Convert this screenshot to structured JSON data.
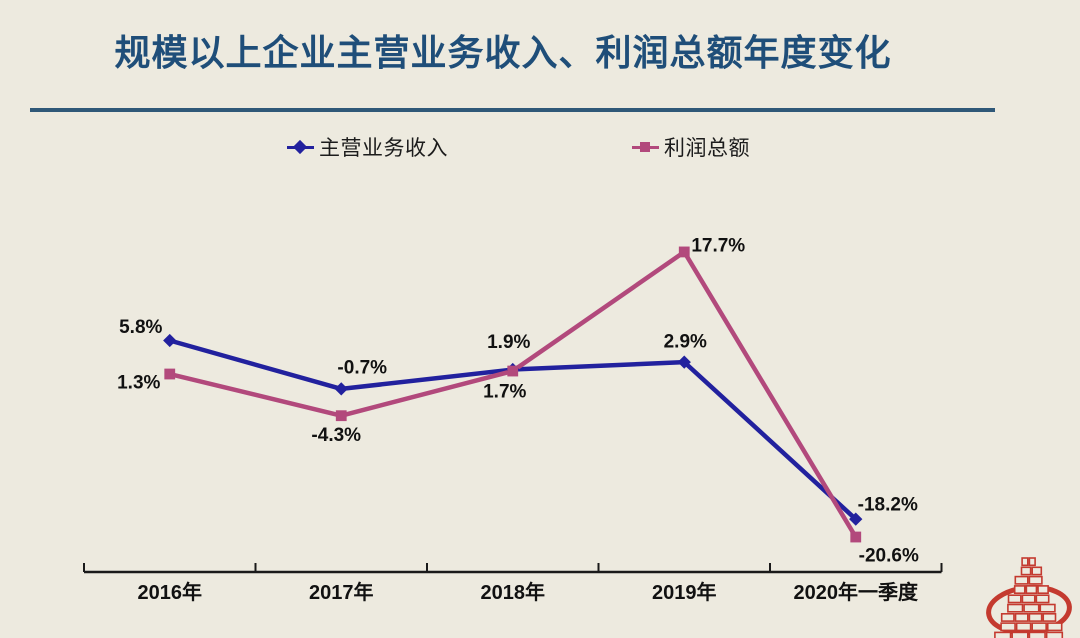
{
  "slide": {
    "background_color": "#EDEADF"
  },
  "header": {
    "title": "规模以上企业主营业务收入、利润总额年度变化",
    "title_color": "#1F4E79",
    "divider_color": "#2F5878"
  },
  "chart_data": {
    "type": "line",
    "title": "规模以上企业主营业务收入、利润总额年度变化",
    "categories": [
      "2016年",
      "2017年",
      "2018年",
      "2019年",
      "2020年一季度"
    ],
    "series": [
      {
        "name": "主营业务收入",
        "color": "#22219E",
        "marker": "diamond",
        "values": [
          5.8,
          -0.7,
          1.9,
          2.9,
          -18.2
        ],
        "labels": [
          "5.8%",
          "-0.7%",
          "1.9%",
          "2.9%",
          "-18.2%"
        ],
        "label_offsets": [
          [
            -29,
            -13
          ],
          [
            21,
            -21
          ],
          [
            -4,
            -27
          ],
          [
            1,
            -20
          ],
          [
            32,
            -14
          ]
        ]
      },
      {
        "name": "利润总额",
        "color": "#B2497C",
        "marker": "square",
        "values": [
          1.3,
          -4.3,
          1.7,
          17.7,
          -20.6
        ],
        "labels": [
          "1.3%",
          "-4.3%",
          "1.7%",
          "17.7%",
          "-20.6%"
        ],
        "label_offsets": [
          [
            -31,
            9
          ],
          [
            -5,
            20
          ],
          [
            -8,
            21
          ],
          [
            34,
            -6
          ],
          [
            33,
            19
          ]
        ]
      }
    ],
    "xlabel": "",
    "ylabel": "",
    "ylim": [
      -25.3,
      27.5
    ],
    "grid": false,
    "legend_position": "top",
    "axis_color": "#1A1A1A",
    "label_color": "#111111",
    "axis_label_color": "#111111"
  },
  "footer": {
    "logo": "brand-emblem",
    "logo_color": "#C43A2F"
  }
}
